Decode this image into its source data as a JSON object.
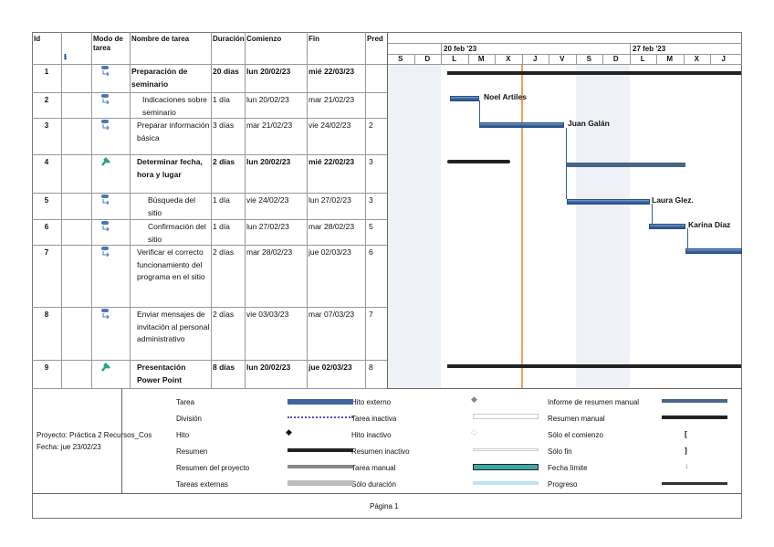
{
  "columns": {
    "id": "Id",
    "info": "ℹ",
    "mode": "Modo de tarea",
    "name": "Nombre de tarea",
    "duration": "Duración",
    "start": "Comienzo",
    "finish": "Fin",
    "pred": "Pred"
  },
  "timescale": {
    "week1": "20 feb '23",
    "week2": "27 feb '23",
    "days": [
      "S",
      "D",
      "L",
      "M",
      "X",
      "J",
      "V",
      "S",
      "D",
      "L",
      "M",
      "X",
      "J"
    ]
  },
  "tasks": [
    {
      "id": "1",
      "name": "Preparación de seminario",
      "duration": "20 días",
      "start": "lun 20/02/23",
      "finish": "mié 22/03/23",
      "pred": "",
      "mode": "auto"
    },
    {
      "id": "2",
      "name": "Indicaciones sobre seminario",
      "duration": "1 día",
      "start": "lun 20/02/23",
      "finish": "mar 21/02/23",
      "pred": "",
      "mode": "auto",
      "resource": "Noel Artiles"
    },
    {
      "id": "3",
      "name": "Preparar información básica",
      "duration": "3 días",
      "start": "mar 21/02/23",
      "finish": "vie 24/02/23",
      "pred": "2",
      "mode": "auto",
      "resource": "Juan Galán"
    },
    {
      "id": "4",
      "name": "Determinar fecha, hora y lugar",
      "duration": "2 días",
      "start": "lun 20/02/23",
      "finish": "mié 22/02/23",
      "pred": "3",
      "mode": "manual"
    },
    {
      "id": "5",
      "name": "Búsqueda del sitio",
      "duration": "1 día",
      "start": "vie 24/02/23",
      "finish": "lun 27/02/23",
      "pred": "3",
      "mode": "auto",
      "resource": "Laura Glez."
    },
    {
      "id": "6",
      "name": "Confirmación del sitio",
      "duration": "1 día",
      "start": "lun 27/02/23",
      "finish": "mar 28/02/23",
      "pred": "5",
      "mode": "auto",
      "resource": "Karina Díaz"
    },
    {
      "id": "7",
      "name": "Verificar el correcto funcionamiento del programa en el sitio",
      "duration": "2 días",
      "start": "mar 28/02/23",
      "finish": "jue 02/03/23",
      "pred": "6",
      "mode": "auto"
    },
    {
      "id": "8",
      "name": "Enviar mensajes de invitación al personal administrativo",
      "duration": "2 días",
      "start": "vie 03/03/23",
      "finish": "mar 07/03/23",
      "pred": "7",
      "mode": "auto"
    },
    {
      "id": "9",
      "name": "Presentación Power Point",
      "duration": "8 días",
      "start": "lun 20/02/23",
      "finish": "jue 02/03/23",
      "pred": "8",
      "mode": "manual"
    }
  ],
  "footer": {
    "project": "Proyecto: Práctica 2 Recursos_Cos",
    "date": "Fecha: jue 23/02/23",
    "page": "Página 1"
  },
  "legend": [
    [
      "Tarea",
      "División",
      "Hito",
      "Resumen",
      "Resumen del proyecto",
      "Tareas externas"
    ],
    [
      "Hito externo",
      "Tarea inactiva",
      "Hito inactivo",
      "Resumen inactivo",
      "Tarea manual",
      "Sólo duración"
    ],
    [
      "Informe de resumen manual",
      "Resumen manual",
      "Sólo el comienzo",
      "Sólo fin",
      "Fecha límite",
      "Progreso"
    ]
  ],
  "colors": {
    "task": "#3b679e",
    "today": "#f0a060",
    "weekend": "#eef1f6"
  }
}
